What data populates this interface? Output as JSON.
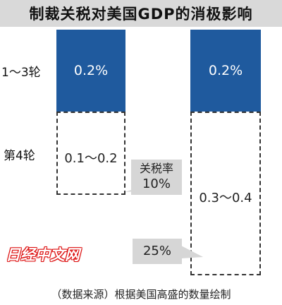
{
  "title": "制裁关税对美国GDP的消极影响",
  "row_labels": [
    "1～3轮",
    "第4轮"
  ],
  "chart_data": {
    "type": "bar",
    "title": "制裁关税对美国GDP的消极影响",
    "categories": [
      "1～3轮",
      "第4轮"
    ],
    "series": [
      {
        "name": "关税率10%",
        "values": [
          "0.2%",
          "0.1～0.2"
        ],
        "low": [
          0.2,
          0.1
        ],
        "high": [
          0.2,
          0.2
        ]
      },
      {
        "name": "25%",
        "values": [
          "0.2%",
          "0.3～0.4"
        ],
        "low": [
          0.2,
          0.3
        ],
        "high": [
          0.2,
          0.4
        ]
      }
    ],
    "stacked": true,
    "value_labels": {
      "left_top": "0.2%",
      "left_bottom": "0.1～0.2",
      "right_top": "0.2%",
      "right_bottom": "0.3～0.4"
    },
    "callouts": {
      "left": [
        "关税率",
        "10%"
      ],
      "right": "25%"
    },
    "colors": {
      "solid": "#1f5a9e",
      "callout": "#d6d6d6"
    }
  },
  "watermark": "日经中文网",
  "source": "（数据来源）根据美国高盛的数量绘制"
}
